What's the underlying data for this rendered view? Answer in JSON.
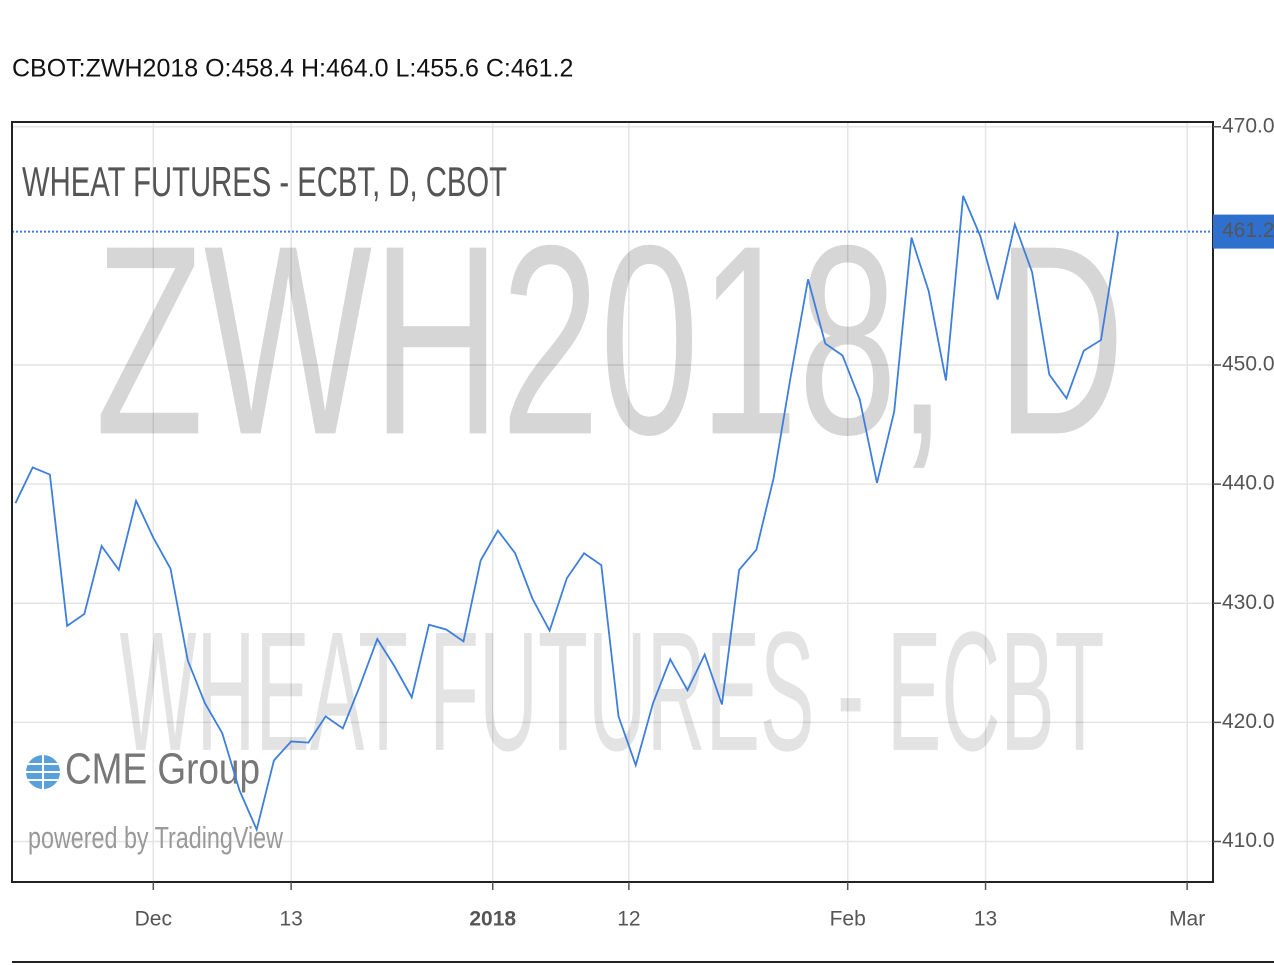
{
  "header": "CBOT:ZWH2018 O:458.4 H:464.0 L:455.6 C:461.2",
  "chart_data": {
    "type": "line",
    "title": "WHEAT FUTURES - ECBT, D, CBOT",
    "watermark": "ZWH2018, D",
    "watermark_subtitle": "WHEAT FUTURES - ECBT",
    "logo": "CME Group",
    "credit": "powered by TradingView",
    "x": [
      0,
      1,
      2,
      3,
      4,
      5,
      6,
      7,
      8,
      9,
      10,
      11,
      12,
      13,
      14,
      15,
      16,
      17,
      18,
      19,
      20,
      21,
      22,
      23,
      24,
      25,
      26,
      27,
      28,
      29,
      30,
      31,
      32,
      33,
      34,
      35,
      36,
      37,
      38,
      39,
      40,
      41,
      42,
      43,
      44,
      45,
      46,
      47,
      48,
      49,
      50,
      51,
      52,
      53,
      54,
      55,
      56,
      57,
      58,
      59,
      60,
      61,
      62,
      63,
      64
    ],
    "series": [
      {
        "name": "ZWH2018",
        "color": "#3f7fdc",
        "values": [
          438.4,
          441.4,
          440.8,
          428.1,
          429.1,
          434.8,
          432.8,
          438.6,
          435.5,
          432.9,
          425.2,
          421.6,
          419.1,
          414.3,
          411.0,
          416.8,
          418.4,
          418.3,
          420.5,
          419.5,
          423.1,
          427.0,
          424.7,
          422.1,
          428.2,
          427.8,
          426.8,
          433.6,
          436.1,
          434.2,
          430.4,
          427.7,
          432.1,
          434.2,
          433.2,
          420.5,
          416.4,
          421.6,
          425.3,
          422.7,
          425.7,
          421.5,
          432.8,
          434.5,
          440.5,
          449.1,
          457.2,
          451.8,
          450.8,
          447.1,
          440.1,
          446.1,
          460.7,
          456.2,
          448.7,
          464.2,
          460.8,
          455.5,
          461.8,
          457.8,
          449.2,
          447.2,
          451.2,
          452.1,
          461.2
        ]
      }
    ],
    "last_value": 461.2,
    "xlim": [
      -0.2,
      69.5
    ],
    "xticks": [
      {
        "value": 8.0,
        "label": "Dec"
      },
      {
        "value": 16.0,
        "label": "13"
      },
      {
        "value": 27.7,
        "label": "2018",
        "bold": true
      },
      {
        "value": 35.6,
        "label": "12"
      },
      {
        "value": 48.3,
        "label": "Feb"
      },
      {
        "value": 56.3,
        "label": "13"
      },
      {
        "value": 68.0,
        "label": "Mar"
      }
    ],
    "ylim": [
      406.6,
      470.4
    ],
    "yticks": [
      {
        "value": 410,
        "label": "410.0"
      },
      {
        "value": 420,
        "label": "420.0"
      },
      {
        "value": 430,
        "label": "430.0"
      },
      {
        "value": 440,
        "label": "440.0"
      },
      {
        "value": 450,
        "label": "450.0"
      },
      {
        "value": 470,
        "label": "470.0"
      }
    ],
    "grid": true
  }
}
